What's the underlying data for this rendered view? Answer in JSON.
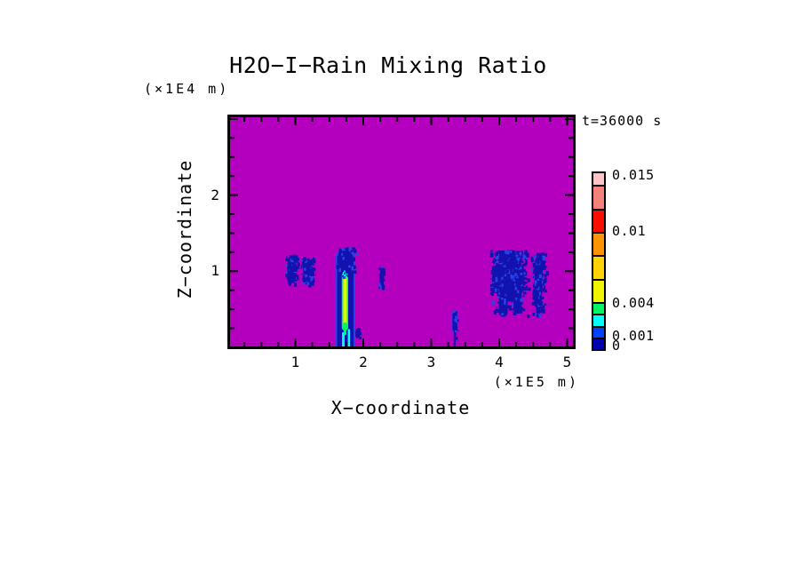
{
  "chart_data": {
    "type": "filled_contour",
    "title": "H2O−I−Rain Mixing Ratio",
    "time_annotation": "t=36000 s",
    "background_zero_color": "#B400BE",
    "x_axis": {
      "label": "X−coordinate",
      "unit": "(×1E5 m)",
      "range": [
        0,
        5.12
      ],
      "labeled_ticks": [
        1,
        2,
        3,
        4,
        5
      ],
      "minor_tick_step": 0.25
    },
    "z_axis": {
      "label": "Z−coordinate",
      "unit": "(×1E4 m)",
      "range": [
        0,
        3.06
      ],
      "labeled_ticks": [
        2,
        1
      ],
      "major_ticks": [
        1,
        2,
        3
      ],
      "minor_tick_step": 0.25
    },
    "colorbar": {
      "levels": [
        0,
        0.001,
        0.002,
        0.003,
        0.004,
        0.006,
        0.008,
        0.01,
        0.012,
        0.014,
        0.015
      ],
      "colors": [
        "#0000B0",
        "#0042FF",
        "#00FFFF",
        "#00F565",
        "#F0F400",
        "#FFD200",
        "#FF9400",
        "#FA0E00",
        "#F4827A",
        "#FFC2C6"
      ],
      "tick_labels": [
        {
          "text": "0.015",
          "value": 0.015
        },
        {
          "text": "0.01",
          "value": 0.01
        },
        {
          "text": "0.004",
          "value": 0.004
        },
        {
          "text": "0.001",
          "value": 0.001
        },
        {
          "text": "0",
          "value": 0
        }
      ]
    },
    "feature_colors": {
      "navy": "#1212AE",
      "blue": "#2A43E8",
      "cyan": "#00FFFF",
      "green": "#00F565",
      "yellow": "#F0F400"
    },
    "features": [
      {
        "name": "rain-streak-left-a",
        "solids": [
          {
            "shape": "vlens",
            "x": [
              0.875,
              1.005
            ],
            "z": [
              0.84,
              1.14
            ],
            "color": "navy"
          }
        ],
        "speckle": {
          "x": [
            0.84,
            1.04
          ],
          "z": [
            0.82,
            1.22
          ],
          "n": 110,
          "bias": "top"
        }
      },
      {
        "name": "rain-streak-left-b",
        "solids": [
          {
            "shape": "vlens",
            "x": [
              1.115,
              1.205
            ],
            "z": [
              0.9,
              1.09
            ],
            "color": "navy"
          }
        ],
        "speckle": {
          "x": [
            1.07,
            1.29
          ],
          "z": [
            0.85,
            1.19
          ],
          "n": 140,
          "bias": "none"
        }
      },
      {
        "name": "main-rain-column",
        "solids": [
          {
            "shape": "vlens",
            "x": [
              1.595,
              1.875
            ],
            "z": [
              -0.1,
              1.31
            ],
            "color": "blue"
          },
          {
            "shape": "vlens",
            "x": [
              1.615,
              1.855
            ],
            "z": [
              -0.1,
              1.27
            ],
            "color": "navy"
          },
          {
            "shape": "vlens",
            "x": [
              1.683,
              1.778
            ],
            "z": [
              0.22,
              0.99
            ],
            "color": "green"
          },
          {
            "shape": "vlens",
            "x": [
              1.705,
              1.758
            ],
            "z": [
              0.3,
              0.92
            ],
            "color": "yellow"
          },
          {
            "shape": "vlens",
            "x": [
              1.687,
              1.725
            ],
            "z": [
              -0.05,
              0.2
            ],
            "color": "cyan"
          },
          {
            "shape": "vlens",
            "x": [
              1.772,
              1.806
            ],
            "z": [
              -0.05,
              0.24
            ],
            "color": "cyan"
          },
          {
            "shape": "vlens",
            "x": [
              1.7,
              1.748
            ],
            "z": [
              0.9,
              1.01
            ],
            "color": "cyan"
          },
          {
            "shape": "vlens",
            "x": [
              1.712,
              1.752
            ],
            "z": [
              0.16,
              0.33
            ],
            "color": "green"
          }
        ],
        "speckle": {
          "x": [
            1.58,
            1.9
          ],
          "z": [
            0.9,
            1.32
          ],
          "n": 60,
          "bias": "top"
        }
      },
      {
        "name": "rain-wisp",
        "solids": [],
        "speckle": {
          "x": [
            2.215,
            2.3
          ],
          "z": [
            0.78,
            1.07
          ],
          "n": 45,
          "bias": "none"
        }
      },
      {
        "name": "rain-speck",
        "solids": [
          {
            "shape": "vlens",
            "x": [
              1.885,
              1.945
            ],
            "z": [
              0.12,
              0.23
            ],
            "color": "navy"
          }
        ],
        "speckle": {
          "x": [
            1.88,
            1.96
          ],
          "z": [
            0.1,
            0.26
          ],
          "n": 10,
          "bias": "none"
        }
      },
      {
        "name": "rain-shaft",
        "solids": [
          {
            "shape": "vlens",
            "x": [
              3.3,
              3.392
            ],
            "z": [
              0.2,
              0.49
            ],
            "color": "blue"
          },
          {
            "shape": "vlens",
            "x": [
              3.312,
              3.382
            ],
            "z": [
              0.21,
              0.46
            ],
            "color": "navy"
          },
          {
            "shape": "rect",
            "x": [
              3.33,
              3.358
            ],
            "z": [
              -0.02,
              0.3
            ],
            "color": "navy"
          }
        ],
        "speckle": {
          "x": [
            3.3,
            3.4
          ],
          "z": [
            0.1,
            0.52
          ],
          "n": 12,
          "bias": "none"
        }
      },
      {
        "name": "rain-cloud",
        "solids": [
          {
            "shape": "ellipse",
            "x": [
              3.92,
              4.37
            ],
            "z": [
              0.6,
              1.12
            ],
            "color": "navy"
          },
          {
            "shape": "ellipse",
            "x": [
              3.895,
              4.08
            ],
            "z": [
              0.7,
              1.1
            ],
            "color": "navy"
          },
          {
            "shape": "vlens",
            "x": [
              3.995,
              4.125
            ],
            "z": [
              0.4,
              0.8
            ],
            "color": "navy"
          },
          {
            "shape": "vlens",
            "x": [
              4.21,
              4.33
            ],
            "z": [
              0.44,
              0.8
            ],
            "color": "navy"
          }
        ],
        "speckle": {
          "x": [
            3.86,
            4.43
          ],
          "z": [
            0.42,
            1.28
          ],
          "n": 650,
          "bias": "top"
        }
      },
      {
        "name": "rain-streak-right",
        "solids": [
          {
            "shape": "vlens",
            "x": [
              4.515,
              4.625
            ],
            "z": [
              0.52,
              1.16
            ],
            "color": "navy"
          },
          {
            "shape": "vlens",
            "x": [
              4.545,
              4.605
            ],
            "z": [
              0.39,
              0.62
            ],
            "color": "navy"
          }
        ],
        "speckle": {
          "x": [
            4.46,
            4.69
          ],
          "z": [
            0.4,
            1.25
          ],
          "n": 240,
          "bias": "top"
        }
      }
    ]
  }
}
